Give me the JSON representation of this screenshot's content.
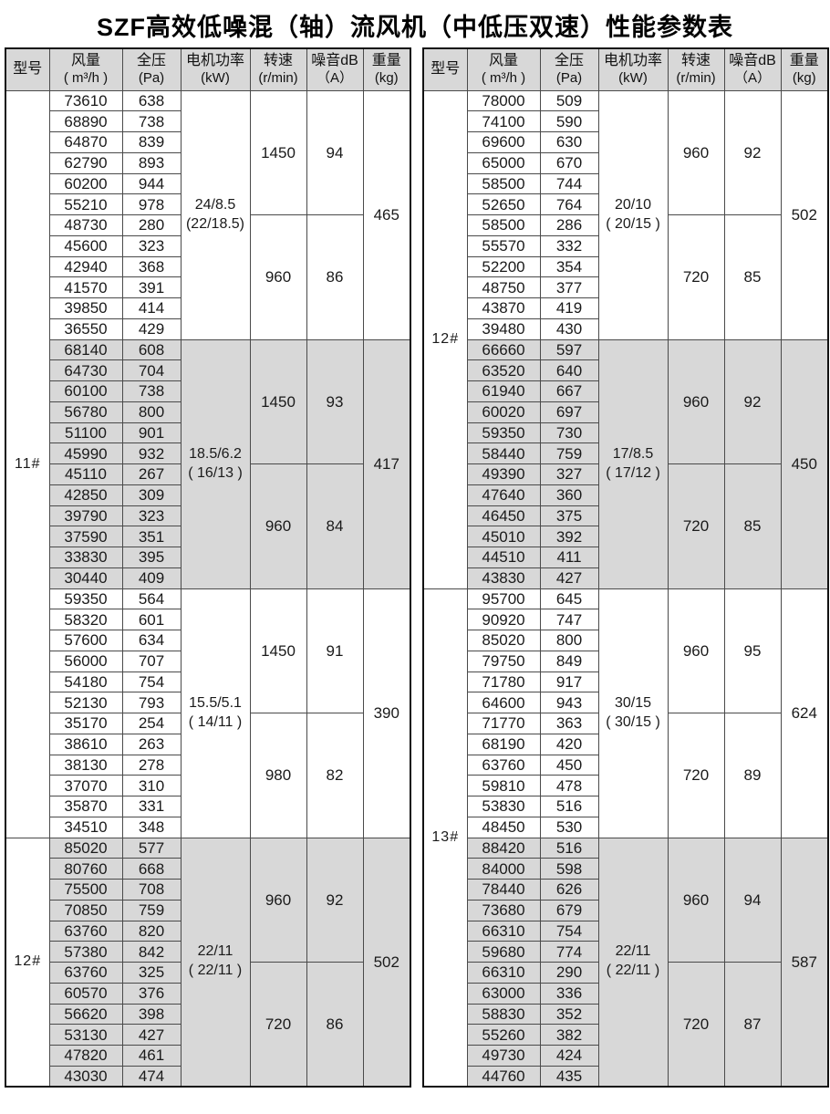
{
  "title": "SZF高效低噪混（轴）流风机（中低压双速）性能参数表",
  "colors": {
    "shaded_row": "#d8d8d8",
    "border": "#4a4a4a",
    "outer_border": "#111111",
    "text": "#1a1a1a"
  },
  "columns": [
    {
      "line1": "型号",
      "line2": ""
    },
    {
      "line1": "风量",
      "line2": "( m³/h )"
    },
    {
      "line1": "全压",
      "line2": "(Pa)"
    },
    {
      "line1": "电机功率",
      "line2": "(kW)"
    },
    {
      "line1": "转速",
      "line2": "(r/min)"
    },
    {
      "line1": "噪音dB",
      "line2": "（A）"
    },
    {
      "line1": "重量",
      "line2": "(kg)"
    }
  ],
  "tables": [
    {
      "sections": [
        {
          "model": "11#",
          "groups": [
            {
              "shaded": false,
              "power_line1": "24/8.5",
              "power_line2": "(22/18.5)",
              "weight": "465",
              "halves": [
                {
                  "speed": "1450",
                  "noise": "94",
                  "rows": [
                    [
                      "73610",
                      "638"
                    ],
                    [
                      "68890",
                      "738"
                    ],
                    [
                      "64870",
                      "839"
                    ],
                    [
                      "62790",
                      "893"
                    ],
                    [
                      "60200",
                      "944"
                    ],
                    [
                      "55210",
                      "978"
                    ]
                  ]
                },
                {
                  "speed": "960",
                  "noise": "86",
                  "rows": [
                    [
                      "48730",
                      "280"
                    ],
                    [
                      "45600",
                      "323"
                    ],
                    [
                      "42940",
                      "368"
                    ],
                    [
                      "41570",
                      "391"
                    ],
                    [
                      "39850",
                      "414"
                    ],
                    [
                      "36550",
                      "429"
                    ]
                  ]
                }
              ]
            },
            {
              "shaded": true,
              "power_line1": "18.5/6.2",
              "power_line2": "( 16/13 )",
              "weight": "417",
              "halves": [
                {
                  "speed": "1450",
                  "noise": "93",
                  "rows": [
                    [
                      "68140",
                      "608"
                    ],
                    [
                      "64730",
                      "704"
                    ],
                    [
                      "60100",
                      "738"
                    ],
                    [
                      "56780",
                      "800"
                    ],
                    [
                      "51100",
                      "901"
                    ],
                    [
                      "45990",
                      "932"
                    ]
                  ]
                },
                {
                  "speed": "960",
                  "noise": "84",
                  "rows": [
                    [
                      "45110",
                      "267"
                    ],
                    [
                      "42850",
                      "309"
                    ],
                    [
                      "39790",
                      "323"
                    ],
                    [
                      "37590",
                      "351"
                    ],
                    [
                      "33830",
                      "395"
                    ],
                    [
                      "30440",
                      "409"
                    ]
                  ]
                }
              ]
            },
            {
              "shaded": false,
              "power_line1": "15.5/5.1",
              "power_line2": "( 14/11 )",
              "weight": "390",
              "halves": [
                {
                  "speed": "1450",
                  "noise": "91",
                  "rows": [
                    [
                      "59350",
                      "564"
                    ],
                    [
                      "58320",
                      "601"
                    ],
                    [
                      "57600",
                      "634"
                    ],
                    [
                      "56000",
                      "707"
                    ],
                    [
                      "54180",
                      "754"
                    ],
                    [
                      "52130",
                      "793"
                    ]
                  ]
                },
                {
                  "speed": "980",
                  "noise": "82",
                  "rows": [
                    [
                      "35170",
                      "254"
                    ],
                    [
                      "38610",
                      "263"
                    ],
                    [
                      "38130",
                      "278"
                    ],
                    [
                      "37070",
                      "310"
                    ],
                    [
                      "35870",
                      "331"
                    ],
                    [
                      "34510",
                      "348"
                    ]
                  ]
                }
              ]
            }
          ]
        },
        {
          "model": "12#",
          "groups": [
            {
              "shaded": true,
              "power_line1": "22/11",
              "power_line2": "( 22/11 )",
              "weight": "502",
              "halves": [
                {
                  "speed": "960",
                  "noise": "92",
                  "rows": [
                    [
                      "85020",
                      "577"
                    ],
                    [
                      "80760",
                      "668"
                    ],
                    [
                      "75500",
                      "708"
                    ],
                    [
                      "70850",
                      "759"
                    ],
                    [
                      "63760",
                      "820"
                    ],
                    [
                      "57380",
                      "842"
                    ]
                  ]
                },
                {
                  "speed": "720",
                  "noise": "86",
                  "rows": [
                    [
                      "63760",
                      "325"
                    ],
                    [
                      "60570",
                      "376"
                    ],
                    [
                      "56620",
                      "398"
                    ],
                    [
                      "53130",
                      "427"
                    ],
                    [
                      "47820",
                      "461"
                    ],
                    [
                      "43030",
                      "474"
                    ]
                  ]
                }
              ]
            }
          ]
        }
      ]
    },
    {
      "sections": [
        {
          "model": "12#",
          "groups": [
            {
              "shaded": false,
              "power_line1": "20/10",
              "power_line2": "( 20/15 )",
              "weight": "502",
              "halves": [
                {
                  "speed": "960",
                  "noise": "92",
                  "rows": [
                    [
                      "78000",
                      "509"
                    ],
                    [
                      "74100",
                      "590"
                    ],
                    [
                      "69600",
                      "630"
                    ],
                    [
                      "65000",
                      "670"
                    ],
                    [
                      "58500",
                      "744"
                    ],
                    [
                      "52650",
                      "764"
                    ]
                  ]
                },
                {
                  "speed": "720",
                  "noise": "85",
                  "rows": [
                    [
                      "58500",
                      "286"
                    ],
                    [
                      "55570",
                      "332"
                    ],
                    [
                      "52200",
                      "354"
                    ],
                    [
                      "48750",
                      "377"
                    ],
                    [
                      "43870",
                      "419"
                    ],
                    [
                      "39480",
                      "430"
                    ]
                  ]
                }
              ]
            },
            {
              "shaded": true,
              "power_line1": "17/8.5",
              "power_line2": "( 17/12 )",
              "weight": "450",
              "halves": [
                {
                  "speed": "960",
                  "noise": "92",
                  "rows": [
                    [
                      "66660",
                      "597"
                    ],
                    [
                      "63520",
                      "640"
                    ],
                    [
                      "61940",
                      "667"
                    ],
                    [
                      "60020",
                      "697"
                    ],
                    [
                      "59350",
                      "730"
                    ],
                    [
                      "58440",
                      "759"
                    ]
                  ]
                },
                {
                  "speed": "720",
                  "noise": "85",
                  "rows": [
                    [
                      "49390",
                      "327"
                    ],
                    [
                      "47640",
                      "360"
                    ],
                    [
                      "46450",
                      "375"
                    ],
                    [
                      "45010",
                      "392"
                    ],
                    [
                      "44510",
                      "411"
                    ],
                    [
                      "43830",
                      "427"
                    ]
                  ]
                }
              ]
            }
          ]
        },
        {
          "model": "13#",
          "groups": [
            {
              "shaded": false,
              "power_line1": "30/15",
              "power_line2": "( 30/15 )",
              "weight": "624",
              "halves": [
                {
                  "speed": "960",
                  "noise": "95",
                  "rows": [
                    [
                      "95700",
                      "645"
                    ],
                    [
                      "90920",
                      "747"
                    ],
                    [
                      "85020",
                      "800"
                    ],
                    [
                      "79750",
                      "849"
                    ],
                    [
                      "71780",
                      "917"
                    ],
                    [
                      "64600",
                      "943"
                    ]
                  ]
                },
                {
                  "speed": "720",
                  "noise": "89",
                  "rows": [
                    [
                      "71770",
                      "363"
                    ],
                    [
                      "68190",
                      "420"
                    ],
                    [
                      "63760",
                      "450"
                    ],
                    [
                      "59810",
                      "478"
                    ],
                    [
                      "53830",
                      "516"
                    ],
                    [
                      "48450",
                      "530"
                    ]
                  ]
                }
              ]
            },
            {
              "shaded": true,
              "power_line1": "22/11",
              "power_line2": "( 22/11 )",
              "weight": "587",
              "halves": [
                {
                  "speed": "960",
                  "noise": "94",
                  "rows": [
                    [
                      "88420",
                      "516"
                    ],
                    [
                      "84000",
                      "598"
                    ],
                    [
                      "78440",
                      "626"
                    ],
                    [
                      "73680",
                      "679"
                    ],
                    [
                      "66310",
                      "754"
                    ],
                    [
                      "59680",
                      "774"
                    ]
                  ]
                },
                {
                  "speed": "720",
                  "noise": "87",
                  "rows": [
                    [
                      "66310",
                      "290"
                    ],
                    [
                      "63000",
                      "336"
                    ],
                    [
                      "58830",
                      "352"
                    ],
                    [
                      "55260",
                      "382"
                    ],
                    [
                      "49730",
                      "424"
                    ],
                    [
                      "44760",
                      "435"
                    ]
                  ]
                }
              ]
            }
          ]
        }
      ]
    }
  ]
}
